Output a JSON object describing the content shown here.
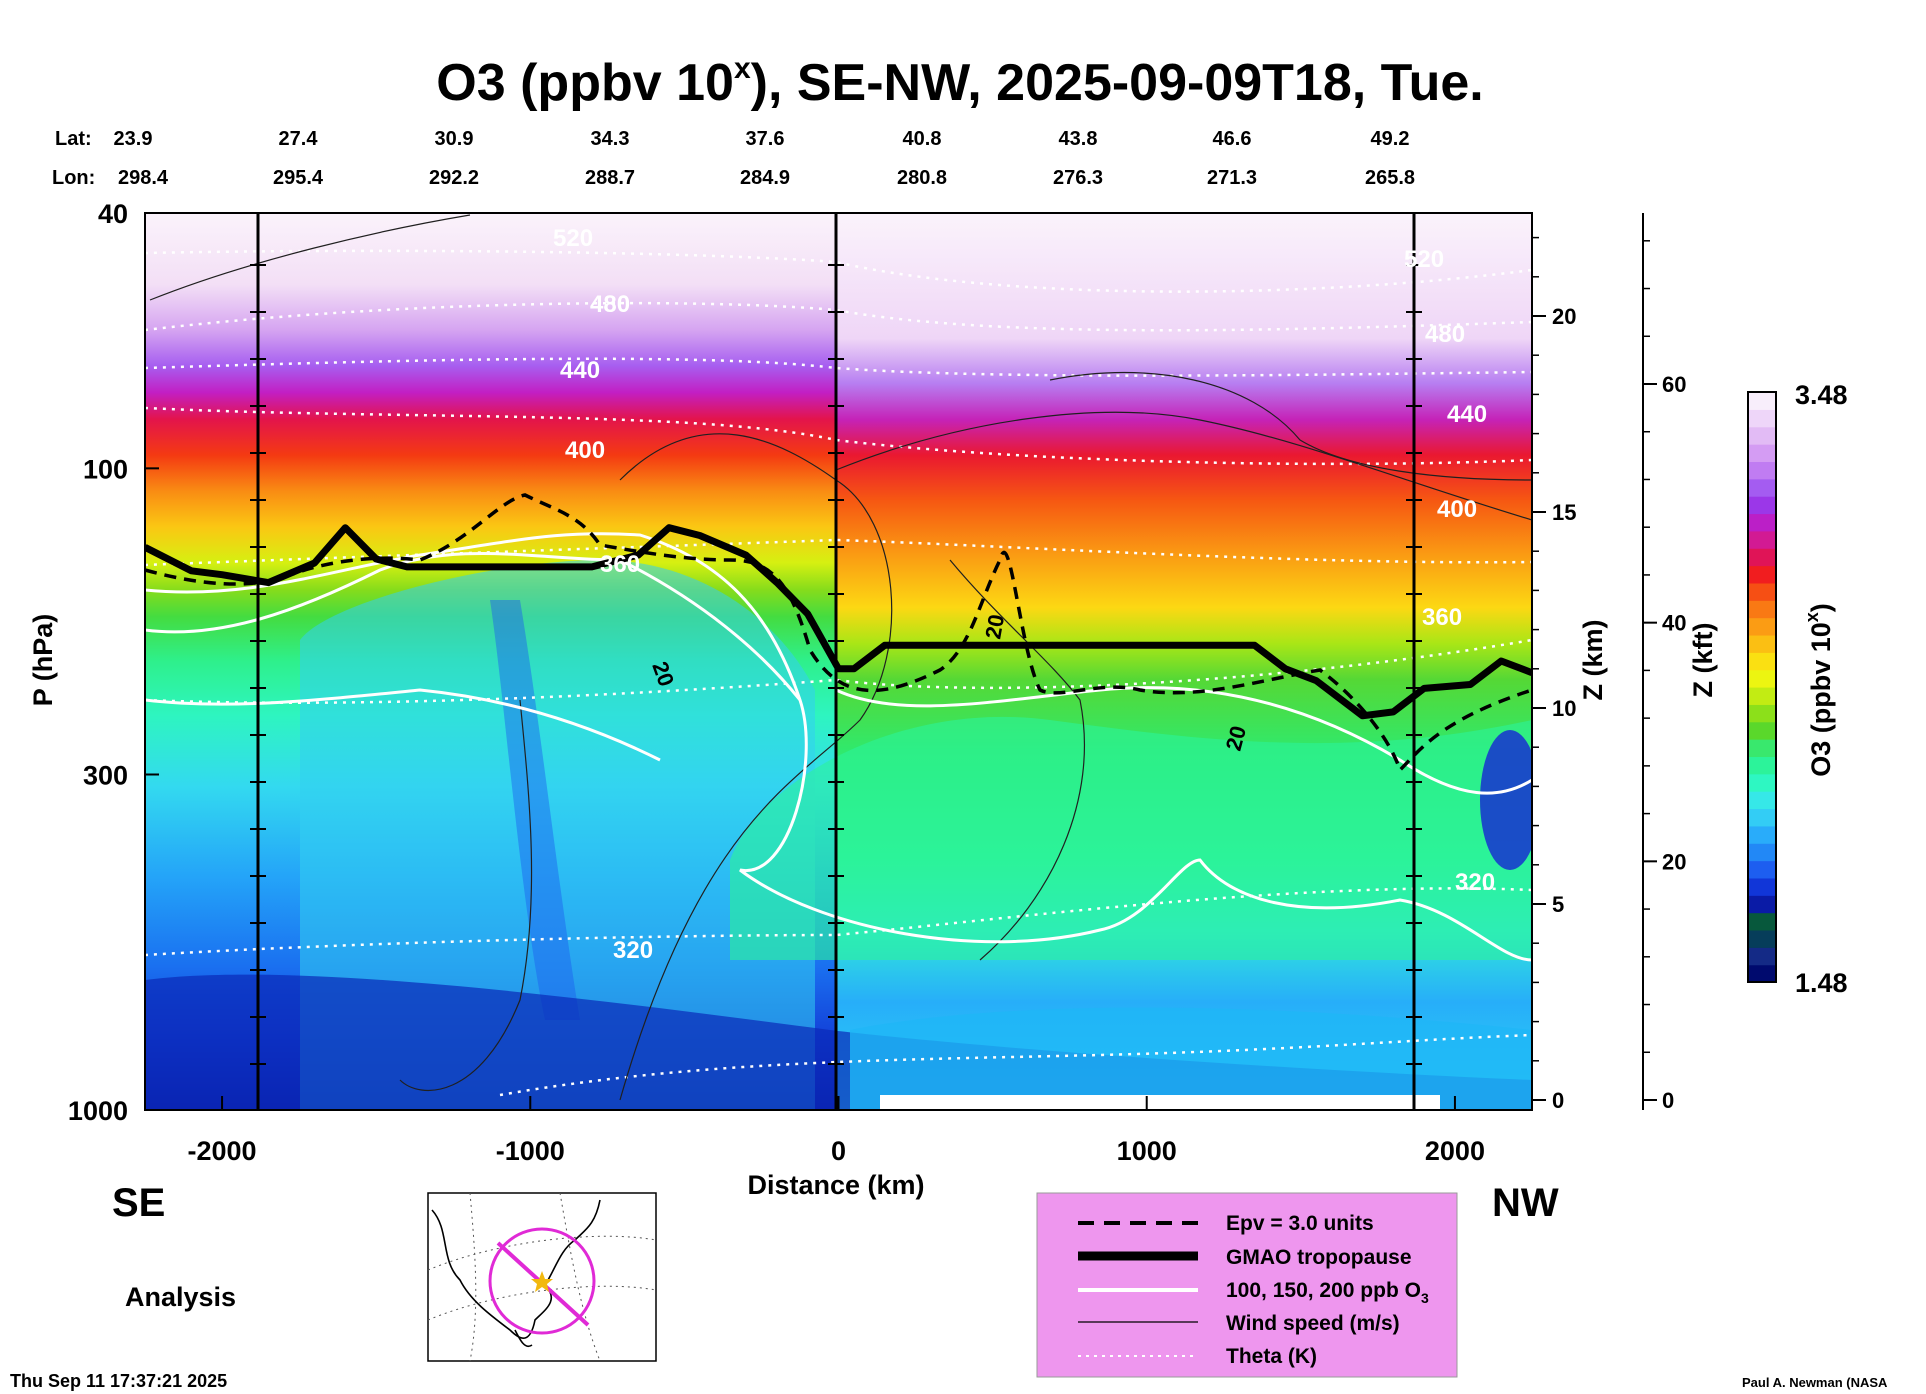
{
  "chart_data": {
    "type": "heatmap",
    "title": "O3 (ppbv 10",
    "title_superscript": "x",
    "title_suffix": "), SE-NW, 2025-09-09T18, Tue.",
    "xlabel": "Distance (km)",
    "ylabel": "P (hPa)",
    "ylabel_right_km": "Z (km)",
    "ylabel_right_kft": "Z (kft)",
    "xlim": [
      -2250,
      2250
    ],
    "ylim": [
      1000,
      40
    ],
    "x_ticks": [
      -2000,
      -1000,
      0,
      1000,
      2000
    ],
    "x_tick_labels": [
      "-2000",
      "-1000",
      "0",
      "1000",
      "2000"
    ],
    "y_ticks": [
      40,
      100,
      300,
      1000
    ],
    "y_tick_labels": [
      "40",
      "100",
      "300",
      "1000"
    ],
    "z_km_ticks": [
      0,
      5,
      10,
      15,
      20
    ],
    "z_km_labels": [
      "0",
      "5",
      "10",
      "15",
      "20"
    ],
    "z_kft_ticks": [
      0,
      20,
      40,
      60
    ],
    "z_kft_labels": [
      "0",
      "20",
      "40",
      "60"
    ],
    "lat_label": "Lat:",
    "lon_label": "Lon:",
    "lat": [
      "23.9",
      "27.4",
      "30.9",
      "34.3",
      "37.6",
      "40.8",
      "43.8",
      "46.6",
      "49.2"
    ],
    "lon": [
      "298.4",
      "295.4",
      "292.2",
      "288.7",
      "284.9",
      "280.8",
      "276.3",
      "271.3",
      "265.8"
    ],
    "colorbar": {
      "label": "O3 (ppbv 10",
      "label_superscript": "x",
      "label_suffix": ")",
      "max_label": "3.48",
      "min_label": "1.48",
      "max": 3.48,
      "min": 1.48,
      "colors": [
        "#000a6e",
        "#142a86",
        "#063d5a",
        "#07583c",
        "#0a1ba6",
        "#1136d8",
        "#1d5ef0",
        "#2288f6",
        "#29acfa",
        "#33cdf5",
        "#36e8e8",
        "#2ef7c2",
        "#2cf39a",
        "#39e86d",
        "#5ad82b",
        "#8ce01a",
        "#c2ec13",
        "#ecf511",
        "#fae012",
        "#fbbf13",
        "#fb9c14",
        "#f97914",
        "#f64f14",
        "#f11d1f",
        "#e01457",
        "#d21a93",
        "#bb1fc7",
        "#9b37e8",
        "#a45cf1",
        "#c07cf2",
        "#d49cf3",
        "#e2bbf5",
        "#eed6f9",
        "#f8eefb"
      ]
    },
    "theta_labels": [
      "320",
      "320",
      "360",
      "360",
      "400",
      "400",
      "440",
      "440",
      "480",
      "480",
      "520",
      "520"
    ],
    "wind_labels": [
      "20",
      "20",
      "20"
    ],
    "side_left": "SE",
    "side_right": "NW",
    "analysis_label": "Analysis",
    "legend": [
      {
        "label": "Epv = 3.0 units",
        "style": "dashed-black"
      },
      {
        "label": "GMAO tropopause",
        "style": "thick-black"
      },
      {
        "label": "100, 150, 200 ppb O",
        "subscript": "3",
        "style": "white"
      },
      {
        "label": "Wind speed (m/s)",
        "style": "thin-black"
      },
      {
        "label": "Theta (K)",
        "style": "dotted-white"
      }
    ],
    "legend_bg": "#ee96ee",
    "tropopause_km": [
      [
        -2250,
        14.1
      ],
      [
        -2100,
        13.5
      ],
      [
        -2000,
        13.4
      ],
      [
        -1850,
        13.2
      ],
      [
        -1700,
        13.7
      ],
      [
        -1600,
        14.6
      ],
      [
        -1500,
        13.8
      ],
      [
        -1400,
        13.6
      ],
      [
        -1300,
        13.6
      ],
      [
        -1000,
        13.6
      ],
      [
        -800,
        13.6
      ],
      [
        -650,
        13.9
      ],
      [
        -550,
        14.6
      ],
      [
        -450,
        14.4
      ],
      [
        -300,
        13.9
      ],
      [
        -200,
        13.2
      ],
      [
        -100,
        12.4
      ],
      [
        0,
        11.0
      ],
      [
        50,
        11.0
      ],
      [
        150,
        11.6
      ],
      [
        500,
        11.6
      ],
      [
        1000,
        11.6
      ],
      [
        1350,
        11.6
      ],
      [
        1450,
        11.0
      ],
      [
        1550,
        10.7
      ],
      [
        1700,
        9.8
      ],
      [
        1800,
        9.9
      ],
      [
        1900,
        10.5
      ],
      [
        2050,
        10.6
      ],
      [
        2150,
        11.2
      ],
      [
        2250,
        10.9
      ]
    ],
    "footer_left": "Thu Sep 11 17:37:21 2025",
    "footer_right": "Paul A. Newman (NASA"
  }
}
